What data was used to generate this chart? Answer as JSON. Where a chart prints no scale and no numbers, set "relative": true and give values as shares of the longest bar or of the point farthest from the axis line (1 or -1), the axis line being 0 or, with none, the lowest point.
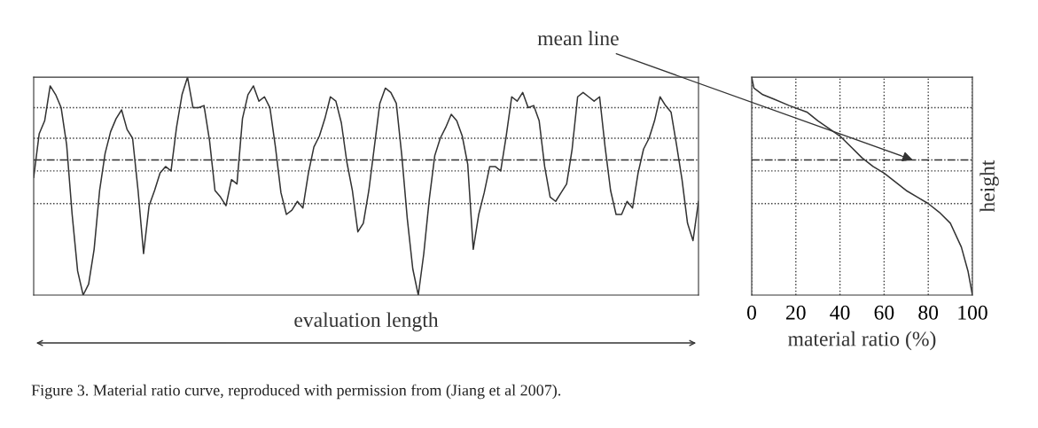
{
  "chart_data": [
    {
      "type": "line",
      "relative": true,
      "xlabel": "evaluation length",
      "tick_labels": false,
      "grid": false,
      "categories": [
        null,
        null,
        null,
        null,
        null,
        null,
        null,
        null,
        null,
        null,
        null,
        null,
        null,
        null,
        null,
        null,
        null,
        null,
        null,
        null,
        null,
        null,
        null,
        null,
        null,
        null,
        null,
        null,
        null,
        null,
        null,
        null,
        null,
        null,
        null,
        null,
        null,
        null,
        null,
        null,
        null,
        null,
        null,
        null,
        null,
        null,
        null,
        null,
        null,
        null,
        null,
        null,
        null,
        null,
        null,
        null,
        null,
        null,
        null,
        null,
        null,
        null,
        null,
        null,
        null,
        null,
        null,
        null,
        null,
        null,
        null,
        null,
        null,
        null,
        null,
        null,
        null,
        null,
        null,
        null,
        null,
        null,
        null,
        null,
        null,
        null,
        null,
        null,
        null,
        null,
        null,
        null,
        null,
        null,
        null,
        null,
        null,
        null,
        null,
        null,
        null,
        null,
        null,
        null,
        null,
        null,
        null,
        null,
        null,
        null,
        null,
        null,
        null,
        null,
        null,
        null,
        null,
        null,
        null,
        null,
        null,
        null
      ],
      "series": [
        {
          "color": "#333333",
          "values": [
            0.54,
            0.74,
            0.8,
            0.96,
            0.92,
            0.86,
            0.69,
            0.37,
            0.11,
            0,
            0.05,
            0.21,
            0.48,
            0.65,
            0.75,
            0.81,
            0.85,
            0.76,
            0.72,
            0.48,
            0.19,
            0.41,
            0.48,
            0.56,
            0.59,
            0.57,
            0.77,
            0.92,
            1,
            0.86,
            0.86,
            0.87,
            0.71,
            0.48,
            0.45,
            0.41,
            0.53,
            0.51,
            0.81,
            0.92,
            0.96,
            0.89,
            0.91,
            0.86,
            0.68,
            0.47,
            0.37,
            0.39,
            0.43,
            0.4,
            0.56,
            0.68,
            0.73,
            0.81,
            0.91,
            0.89,
            0.79,
            0.61,
            0.48,
            0.29,
            0.33,
            0.48,
            0.68,
            0.88,
            0.95,
            0.93,
            0.88,
            0.64,
            0.35,
            0.12,
            0,
            0.19,
            0.44,
            0.64,
            0.72,
            0.77,
            0.83,
            0.8,
            0.73,
            0.6,
            0.21,
            0.37,
            0.47,
            0.59,
            0.59,
            0.57,
            0.73,
            0.91,
            0.89,
            0.93,
            0.86,
            0.87,
            0.8,
            0.59,
            0.45,
            0.43,
            0.47,
            0.51,
            0.67,
            0.91,
            0.93,
            0.91,
            0.89,
            0.91,
            0.68,
            0.48,
            0.37,
            0.37,
            0.43,
            0.4,
            0.56,
            0.67,
            0.72,
            0.8,
            0.91,
            0.87,
            0.84,
            0.69,
            0.53,
            0.33,
            0.25,
            0.43
          ]
        }
      ],
      "ref_lines": [
        {
          "axis": "y",
          "value": 0.86,
          "line_style": "dotted"
        },
        {
          "axis": "y",
          "value": 0.72,
          "line_style": "dotted"
        },
        {
          "axis": "y",
          "value": 0.62,
          "line_style": "dashdot"
        },
        {
          "axis": "y",
          "value": 0.57,
          "line_style": "dotted"
        },
        {
          "axis": "y",
          "value": 0.42,
          "line_style": "dotted"
        }
      ],
      "annotations": [
        "Figure 3. Material ratio curve, reproduced with permission from (Jiang et al 2007)."
      ]
    },
    {
      "type": "line",
      "relative": true,
      "xlabel": "material ratio (%)",
      "ylabel": "height",
      "tick_labels": "x",
      "grid": "x",
      "xlim": [
        0,
        100
      ],
      "xticks": [
        0,
        20,
        40,
        60,
        80,
        100
      ],
      "series": [
        {
          "color": "#333333",
          "x": [
            0,
            1,
            5,
            10,
            17,
            25,
            30,
            40,
            45,
            50,
            55,
            60,
            65,
            70,
            75,
            80,
            85,
            90,
            95,
            98,
            100
          ],
          "values": [
            1,
            0.95,
            0.92,
            0.9,
            0.87,
            0.84,
            0.8,
            0.73,
            0.68,
            0.63,
            0.59,
            0.56,
            0.52,
            0.48,
            0.45,
            0.42,
            0.38,
            0.33,
            0.22,
            0.11,
            0
          ]
        }
      ],
      "ref_lines": [
        {
          "axis": "y",
          "value": 0.86,
          "line_style": "dotted"
        },
        {
          "axis": "y",
          "value": 0.72,
          "line_style": "dotted"
        },
        {
          "axis": "y",
          "value": 0.62,
          "line_style": "dashdot"
        },
        {
          "axis": "y",
          "value": 0.57,
          "line_style": "dotted"
        },
        {
          "axis": "y",
          "value": 0.42,
          "line_style": "dotted"
        }
      ],
      "annotations": [
        {
          "text": "mean line",
          "x": 73,
          "y": 0.62
        }
      ]
    }
  ]
}
